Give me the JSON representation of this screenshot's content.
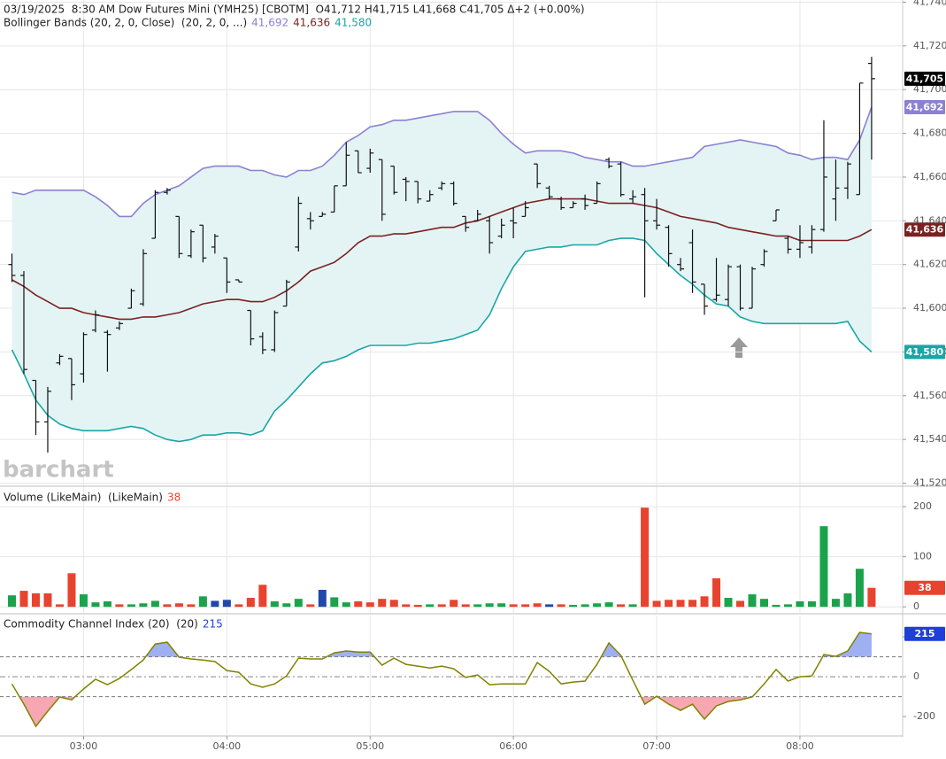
{
  "chart_data": [
    {
      "type": "ohlc",
      "title": "03/19/2025  8:30 AM Dow Futures Mini (YMH25) [CBOTM]  O41,712 H41,715 L41,668 C41,705 Δ+2 (+0.00%)",
      "watermark": "barchart",
      "color": "#111111",
      "last_label": "41,705",
      "last_color": "#000000",
      "xlim": [
        145,
        523
      ],
      "ylim": [
        41519,
        41741
      ],
      "grid": true,
      "yticks": [
        {
          "value": 41520,
          "label": "41,520"
        },
        {
          "value": 41540,
          "label": "41,540"
        },
        {
          "value": 41560,
          "label": "41,560"
        },
        {
          "value": 41580,
          "label": "41,580"
        },
        {
          "value": 41600,
          "label": "41,600"
        },
        {
          "value": 41620,
          "label": "41,620"
        },
        {
          "value": 41640,
          "label": "41,640"
        },
        {
          "value": 41660,
          "label": "41,660"
        },
        {
          "value": 41680,
          "label": "41,680"
        },
        {
          "value": 41700,
          "label": "41,700"
        },
        {
          "value": 41720,
          "label": "41,720"
        },
        {
          "value": 41740,
          "label": "41,740"
        }
      ],
      "x": [
        150,
        155,
        160,
        165,
        170,
        175,
        180,
        185,
        190,
        195,
        200,
        205,
        210,
        215,
        220,
        225,
        230,
        235,
        240,
        245,
        250,
        255,
        260,
        265,
        270,
        275,
        280,
        285,
        290,
        295,
        300,
        305,
        310,
        315,
        320,
        325,
        330,
        335,
        340,
        345,
        350,
        355,
        360,
        365,
        370,
        375,
        380,
        385,
        390,
        395,
        400,
        405,
        410,
        415,
        420,
        425,
        430,
        435,
        440,
        445,
        450,
        455,
        460,
        465,
        470,
        475,
        480,
        485,
        490,
        495,
        500,
        505,
        510
      ],
      "open": [
        41620,
        41615,
        41567,
        41548,
        41575,
        41577,
        41570,
        41590,
        41589,
        41591,
        41600,
        41602,
        41632,
        41653,
        41642,
        41624,
        41638,
        41628,
        41623,
        41613,
        41599,
        41587,
        41581,
        41601,
        41628,
        41641,
        41642,
        41644,
        41656,
        41672,
        41664,
        41668,
        41665,
        41659,
        41658,
        41649,
        41655,
        41657,
        41642,
        41640,
        41640,
        41633,
        41640,
        41642,
        41666,
        41655,
        41650,
        41646,
        41650,
        41648,
        41668,
        41666,
        41650,
        41652,
        41640,
        41637,
        41620,
        41630,
        41611,
        41604,
        41604,
        41619,
        41600,
        41620,
        41640,
        41632,
        41627,
        41628,
        41636,
        41650,
        41655,
        41652,
        41712
      ],
      "high": [
        41625,
        41617,
        41567,
        41564,
        41579,
        41577,
        41589,
        41599,
        41590,
        41594,
        41609,
        41627,
        41654,
        41655,
        41642,
        41636,
        41638,
        41634,
        41623,
        41613,
        41599,
        41589,
        41599,
        41613,
        41651,
        41644,
        41644,
        41656,
        41676,
        41672,
        41673,
        41668,
        41665,
        41660,
        41658,
        41654,
        41658,
        41658,
        41642,
        41645,
        41642,
        41641,
        41646,
        41649,
        41666,
        41656,
        41651,
        41649,
        41652,
        41658,
        41669,
        41667,
        41654,
        41655,
        41650,
        41638,
        41623,
        41636,
        41611,
        41623,
        41620,
        41620,
        41619,
        41627,
        41645,
        41633,
        41638,
        41638,
        41686,
        41668,
        41667,
        41703,
        41715
      ],
      "low": [
        41612,
        41570,
        41542,
        41534,
        41574,
        41558,
        41566,
        41589,
        41571,
        41590,
        41600,
        41601,
        41632,
        41652,
        41623,
        41623,
        41621,
        41625,
        41607,
        41612,
        41583,
        41579,
        41580,
        41601,
        41626,
        41636,
        41642,
        41644,
        41656,
        41662,
        41662,
        41640,
        41652,
        41649,
        41648,
        41649,
        41654,
        41647,
        41635,
        41640,
        41625,
        41632,
        41632,
        41642,
        41655,
        41650,
        41645,
        41646,
        41645,
        41648,
        41664,
        41651,
        41648,
        41605,
        41636,
        41619,
        41617,
        41607,
        41597,
        41603,
        41601,
        41599,
        41600,
        41619,
        41640,
        41625,
        41623,
        41625,
        41635,
        41640,
        41650,
        41652,
        41668
      ],
      "close": [
        41615,
        41572,
        41548,
        41562,
        41578,
        41565,
        41588,
        41597,
        41588,
        41593,
        41608,
        41625,
        41653,
        41654,
        41625,
        41635,
        41623,
        41633,
        41612,
        41612,
        41586,
        41581,
        41598,
        41612,
        41648,
        41640,
        41643,
        41656,
        41670,
        41662,
        41671,
        41643,
        41653,
        41658,
        41650,
        41652,
        41657,
        41648,
        41637,
        41643,
        41630,
        41638,
        41639,
        41646,
        41657,
        41651,
        41646,
        41648,
        41647,
        41657,
        41665,
        41652,
        41651,
        41640,
        41638,
        41625,
        41618,
        41612,
        41601,
        41606,
        41619,
        41600,
        41618,
        41626,
        41645,
        41627,
        41630,
        41636,
        41660,
        41655,
        41666,
        41703,
        41705
      ],
      "overlay": {
        "title": "Bollinger Bands (20, 2, 0, Close)  (20, 2, 0, ...)",
        "fill": "#e4f4f4",
        "series": [
          {
            "color": "#8c80d4",
            "last_label": "41,692",
            "values": [
              41653,
              41652,
              41654,
              41654,
              41654,
              41654,
              41654,
              41651,
              41647,
              41642,
              41642,
              41648,
              41652,
              41654,
              41656,
              41660,
              41664,
              41665,
              41665,
              41665,
              41663,
              41663,
              41661,
              41660,
              41663,
              41663,
              41665,
              41670,
              41676,
              41679,
              41683,
              41684,
              41686,
              41686,
              41687,
              41688,
              41689,
              41690,
              41690,
              41690,
              41686,
              41680,
              41675,
              41671,
              41672,
              41672,
              41672,
              41671,
              41669,
              41668,
              41667,
              41667,
              41665,
              41665,
              41666,
              41667,
              41668,
              41669,
              41674,
              41675,
              41676,
              41677,
              41676,
              41675,
              41674,
              41671,
              41670,
              41668,
              41669,
              41669,
              41668,
              41677,
              41692
            ]
          },
          {
            "color": "#7a2222",
            "last_label": "41,636",
            "values": [
              41613,
              41610,
              41606,
              41603,
              41600,
              41600,
              41598,
              41597,
              41596,
              41595,
              41595,
              41596,
              41596,
              41597,
              41598,
              41600,
              41602,
              41603,
              41604,
              41604,
              41603,
              41603,
              41605,
              41608,
              41612,
              41617,
              41619,
              41621,
              41625,
              41630,
              41633,
              41633,
              41634,
              41634,
              41635,
              41636,
              41637,
              41637,
              41639,
              41640,
              41642,
              41644,
              41646,
              41648,
              41649,
              41650,
              41650,
              41650,
              41650,
              41649,
              41648,
              41648,
              41648,
              41647,
              41646,
              41644,
              41642,
              41641,
              41640,
              41639,
              41637,
              41636,
              41635,
              41634,
              41633,
              41633,
              41631,
              41631,
              41631,
              41631,
              41631,
              41633,
              41636
            ]
          },
          {
            "color": "#1aa6a6",
            "last_label": "41,580",
            "values": [
              41581,
              41570,
              41558,
              41551,
              41547,
              41545,
              41544,
              41544,
              41544,
              41545,
              41546,
              41545,
              41542,
              41540,
              41539,
              41540,
              41542,
              41542,
              41543,
              41543,
              41542,
              41544,
              41553,
              41558,
              41564,
              41570,
              41575,
              41576,
              41578,
              41581,
              41583,
              41583,
              41583,
              41583,
              41584,
              41584,
              41585,
              41586,
              41588,
              41590,
              41597,
              41609,
              41619,
              41626,
              41627,
              41628,
              41628,
              41629,
              41629,
              41629,
              41631,
              41632,
              41632,
              41631,
              41625,
              41620,
              41615,
              41611,
              41606,
              41602,
              41601,
              41596,
              41594,
              41593,
              41593,
              41593,
              41593,
              41593,
              41593,
              41593,
              41594,
              41585,
              41580
            ]
          }
        ]
      }
    },
    {
      "type": "bar",
      "title": "Volume (LikeMain)  (LikeMain)",
      "last_label": "38",
      "last_color": "#e8432e",
      "xlim": [
        145,
        523
      ],
      "ylim": [
        -12,
        239
      ],
      "yticks": [
        0,
        100,
        200
      ],
      "grid": true,
      "x": [
        150,
        155,
        160,
        165,
        170,
        175,
        180,
        185,
        190,
        195,
        200,
        205,
        210,
        215,
        220,
        225,
        230,
        235,
        240,
        245,
        250,
        255,
        260,
        265,
        270,
        275,
        280,
        285,
        290,
        295,
        300,
        305,
        310,
        315,
        320,
        325,
        330,
        335,
        340,
        345,
        350,
        355,
        360,
        365,
        370,
        375,
        380,
        385,
        390,
        395,
        400,
        405,
        410,
        415,
        420,
        425,
        430,
        435,
        440,
        445,
        450,
        455,
        460,
        465,
        470,
        475,
        480,
        485,
        490,
        495,
        500,
        505,
        510
      ],
      "values": [
        23,
        32,
        27,
        27,
        5,
        67,
        25,
        9,
        11,
        5,
        5,
        7,
        12,
        5,
        7,
        5,
        21,
        12,
        14,
        5,
        18,
        44,
        11,
        7,
        16,
        5,
        34,
        19,
        9,
        11,
        9,
        16,
        14,
        5,
        4,
        5,
        5,
        14,
        5,
        5,
        7,
        7,
        5,
        5,
        7,
        5,
        5,
        4,
        5,
        7,
        9,
        5,
        5,
        198,
        12,
        14,
        14,
        14,
        21,
        57,
        18,
        12,
        25,
        16,
        4,
        5,
        11,
        11,
        161,
        16,
        27,
        76,
        38
      ],
      "colors": [
        "#1ba34b",
        "#e8432e",
        "#e8432e",
        "#e8432e",
        "#e8432e",
        "#e8432e",
        "#1ba34b",
        "#1ba34b",
        "#1ba34b",
        "#e8432e",
        "#1ba34b",
        "#1ba34b",
        "#1ba34b",
        "#e8432e",
        "#e8432e",
        "#e8432e",
        "#1ba34b",
        "#1f48a8",
        "#1f48a8",
        "#e8432e",
        "#e8432e",
        "#e8432e",
        "#1ba34b",
        "#1ba34b",
        "#1ba34b",
        "#e8432e",
        "#1f48a8",
        "#1ba34b",
        "#1ba34b",
        "#e8432e",
        "#e8432e",
        "#e8432e",
        "#e8432e",
        "#e8432e",
        "#e8432e",
        "#1ba34b",
        "#e8432e",
        "#e8432e",
        "#e8432e",
        "#1ba34b",
        "#1ba34b",
        "#1ba34b",
        "#e8432e",
        "#e8432e",
        "#e8432e",
        "#1f48a8",
        "#e8432e",
        "#1ba34b",
        "#1ba34b",
        "#1ba34b",
        "#1ba34b",
        "#e8432e",
        "#1ba34b",
        "#e8432e",
        "#e8432e",
        "#e8432e",
        "#e8432e",
        "#e8432e",
        "#e8432e",
        "#e8432e",
        "#1ba34b",
        "#e8432e",
        "#1ba34b",
        "#1ba34b",
        "#1ba34b",
        "#1ba34b",
        "#1ba34b",
        "#1ba34b",
        "#1ba34b",
        "#1ba34b",
        "#1ba34b",
        "#1ba34b",
        "#e8432e"
      ]
    },
    {
      "type": "line",
      "title": "Commodity Channel Index (20)  (20)",
      "last_label": "215",
      "last_color": "#1f3fd9",
      "color": "#828200",
      "upper_fill": "#9fb0f2",
      "lower_fill": "#f6a7b2",
      "levels": [
        100,
        -100
      ],
      "xlim": [
        145,
        523
      ],
      "ylim": [
        -293,
        307
      ],
      "yticks": [
        -200,
        0,
        200
      ],
      "xticks": [
        {
          "value": 180,
          "label": "03:00"
        },
        {
          "value": 240,
          "label": "04:00"
        },
        {
          "value": 300,
          "label": "05:00"
        },
        {
          "value": 360,
          "label": "06:00"
        },
        {
          "value": 420,
          "label": "07:00"
        },
        {
          "value": 480,
          "label": "08:00"
        }
      ],
      "x": [
        150,
        155,
        160,
        165,
        170,
        175,
        180,
        185,
        190,
        195,
        200,
        205,
        210,
        215,
        220,
        225,
        230,
        235,
        240,
        245,
        250,
        255,
        260,
        265,
        270,
        275,
        280,
        285,
        290,
        295,
        300,
        305,
        310,
        315,
        320,
        325,
        330,
        335,
        340,
        345,
        350,
        355,
        360,
        365,
        370,
        375,
        380,
        385,
        390,
        395,
        400,
        405,
        410,
        415,
        420,
        425,
        430,
        435,
        440,
        445,
        450,
        455,
        460,
        465,
        470,
        475,
        480,
        485,
        490,
        495,
        500,
        505,
        510
      ],
      "values": [
        -36,
        -138,
        -249,
        -173,
        -102,
        -116,
        -62,
        -13,
        -40,
        -9,
        36,
        84,
        164,
        173,
        98,
        89,
        84,
        76,
        31,
        22,
        -36,
        -53,
        -36,
        4,
        93,
        89,
        89,
        120,
        129,
        124,
        124,
        58,
        93,
        62,
        53,
        44,
        53,
        40,
        -4,
        9,
        -40,
        -36,
        -36,
        -36,
        71,
        27,
        -36,
        -27,
        -22,
        62,
        169,
        107,
        -18,
        -138,
        -98,
        -138,
        -169,
        -138,
        -213,
        -147,
        -124,
        -116,
        -102,
        -36,
        36,
        -22,
        0,
        4,
        111,
        102,
        129,
        222,
        215
      ]
    }
  ]
}
